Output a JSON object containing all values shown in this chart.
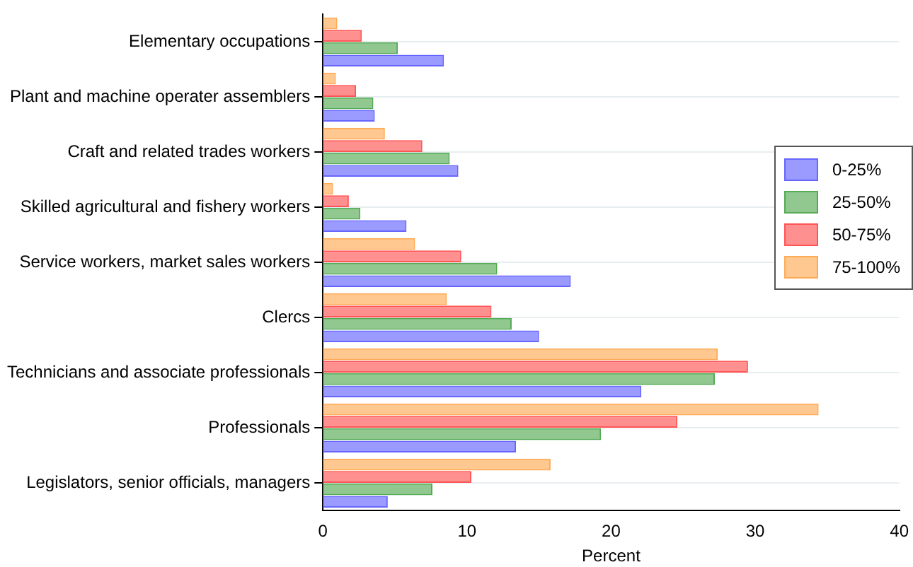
{
  "chart_data": {
    "type": "bar",
    "orientation": "horizontal",
    "xlabel": "Percent",
    "categories": [
      "Elementary occupations",
      "Plant and machine operater assemblers",
      "Craft and related trades workers",
      "Skilled agricultural and fishery workers",
      "Service workers, market sales workers",
      "Clercs",
      "Technicians and associate professionals",
      "Professionals",
      "Legislators, senior officials, managers"
    ],
    "series": [
      {
        "name": "0-25%",
        "color": "#6666ff",
        "values": [
          8.4,
          3.6,
          9.4,
          5.8,
          17.2,
          15.0,
          22.1,
          13.4,
          4.5
        ]
      },
      {
        "name": "25-50%",
        "color": "#55aa55",
        "values": [
          5.2,
          3.5,
          8.8,
          2.6,
          12.1,
          13.1,
          27.2,
          19.3,
          7.6
        ]
      },
      {
        "name": "50-75%",
        "color": "#ff5555",
        "values": [
          2.7,
          2.3,
          6.9,
          1.8,
          9.6,
          11.7,
          29.5,
          24.6,
          10.3
        ]
      },
      {
        "name": "75-100%",
        "color": "#ffaa55",
        "values": [
          1.0,
          0.9,
          4.3,
          0.7,
          6.4,
          8.6,
          27.4,
          34.4,
          15.8
        ]
      }
    ],
    "xlim": [
      0,
      40
    ],
    "xticks": [
      0,
      10,
      20,
      30,
      40
    ],
    "grid": "y",
    "legend": "right"
  }
}
